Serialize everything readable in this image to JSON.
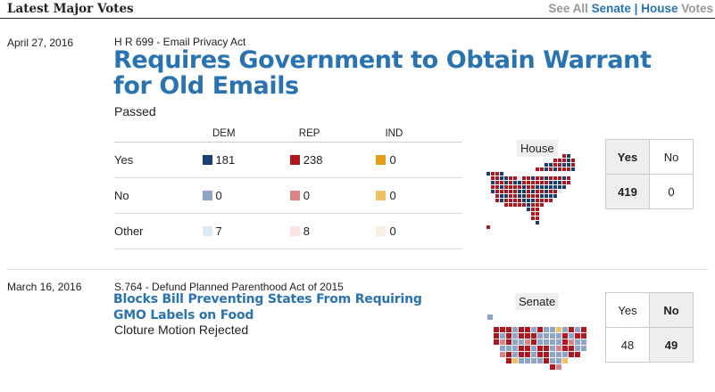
{
  "header": {
    "title": "Latest Major Votes",
    "see_all": "See All",
    "senate": "Senate",
    "separator": "|",
    "house": "House",
    "votes": "Votes"
  },
  "votes": [
    {
      "date": "April 27, 2016",
      "bill": "H R 699 - Email Privacy Act",
      "headline": "Requires Government to Obtain Warrant for Old Emails",
      "result": "Passed",
      "columns": [
        "DEM",
        "REP",
        "IND"
      ],
      "rows": [
        {
          "label": "Yes",
          "dem": "181",
          "rep": "238",
          "ind": "0"
        },
        {
          "label": "No",
          "dem": "0",
          "rep": "0",
          "ind": "0"
        },
        {
          "label": "Other",
          "dem": "7",
          "rep": "8",
          "ind": "0"
        }
      ],
      "chamber": "House",
      "tally": {
        "yes_label": "Yes",
        "no_label": "No",
        "yes": "419",
        "no": "0"
      }
    },
    {
      "date": "March 16, 2016",
      "bill": "S.764 - Defund Planned Parenthood Act of 2015",
      "headline": "Blocks Bill Preventing States From Requiring GMO Labels on Food",
      "result": "Cloture Motion Rejected",
      "chamber": "Senate",
      "tally": {
        "yes_label": "Yes",
        "no_label": "No",
        "yes": "48",
        "no": "49"
      }
    }
  ],
  "colors": {
    "dem_yes": "#1a3e6f",
    "rep_yes": "#b0161d",
    "ind_yes": "#e39e1a",
    "dem_no": "#8ea5c6",
    "rep_no": "#d98587",
    "ind_no": "#f0c164",
    "dem_other": "#dfe8f3",
    "rep_other": "#f8e5e4",
    "ind_other": "#f7efe0",
    "link": "#2a73b1"
  }
}
